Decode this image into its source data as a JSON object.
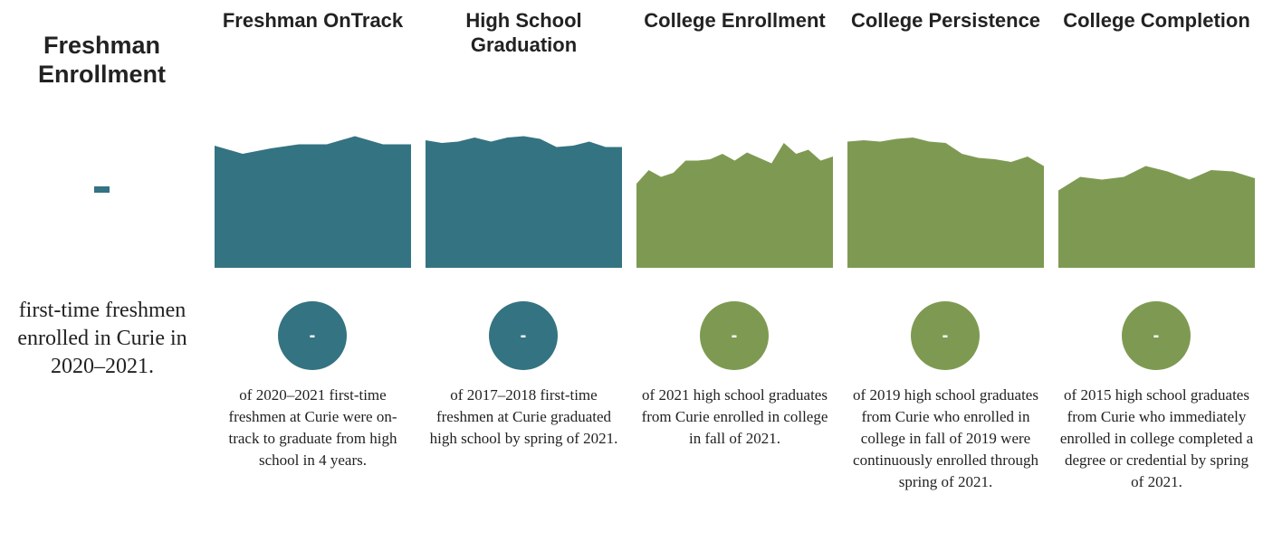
{
  "colors": {
    "teal": "#347382",
    "green": "#7e9a52"
  },
  "freshman_enrollment": {
    "title": "Freshman Enrollment",
    "value": "-",
    "caption": "first-time freshmen enrolled in Curie in 2020–2021."
  },
  "chart_data": {
    "type": "area",
    "metrics": [
      {
        "title": "Freshman OnTrack",
        "value": "-",
        "color": "teal",
        "caption": "of 2020–2021 first-time freshmen at Curie were on-track to graduate from high school in 4 years.",
        "trend": [
          0.9,
          0.84,
          0.88,
          0.91,
          0.91,
          0.97,
          0.91,
          0.91
        ]
      },
      {
        "title": "High School Graduation",
        "value": "-",
        "color": "teal",
        "caption": "of 2017–2018 first-time freshmen at Curie graduated high school by spring of 2021.",
        "trend": [
          0.94,
          0.92,
          0.93,
          0.96,
          0.93,
          0.96,
          0.97,
          0.95,
          0.89,
          0.9,
          0.93,
          0.89,
          0.89
        ]
      },
      {
        "title": "College Enrollment",
        "value": "-",
        "color": "green",
        "caption": "of 2021 high school graduates from Curie enrolled in college in fall of 2021.",
        "trend": [
          0.62,
          0.72,
          0.67,
          0.7,
          0.79,
          0.79,
          0.8,
          0.84,
          0.79,
          0.85,
          0.81,
          0.77,
          0.92,
          0.84,
          0.87,
          0.79,
          0.82
        ]
      },
      {
        "title": "College Persistence",
        "value": "-",
        "color": "green",
        "caption": "of 2019 high school graduates from Curie who enrolled in college in fall of 2019 were continuously enrolled through spring of 2021.",
        "trend": [
          0.93,
          0.94,
          0.93,
          0.95,
          0.96,
          0.93,
          0.92,
          0.84,
          0.81,
          0.8,
          0.78,
          0.82,
          0.75
        ]
      },
      {
        "title": "College Completion",
        "value": "-",
        "color": "green",
        "caption": "of 2015 high school graduates from Curie who immediately enrolled in college completed a degree or credential by spring of 2021.",
        "trend": [
          0.57,
          0.67,
          0.65,
          0.67,
          0.75,
          0.71,
          0.65,
          0.72,
          0.71,
          0.66
        ]
      }
    ]
  }
}
